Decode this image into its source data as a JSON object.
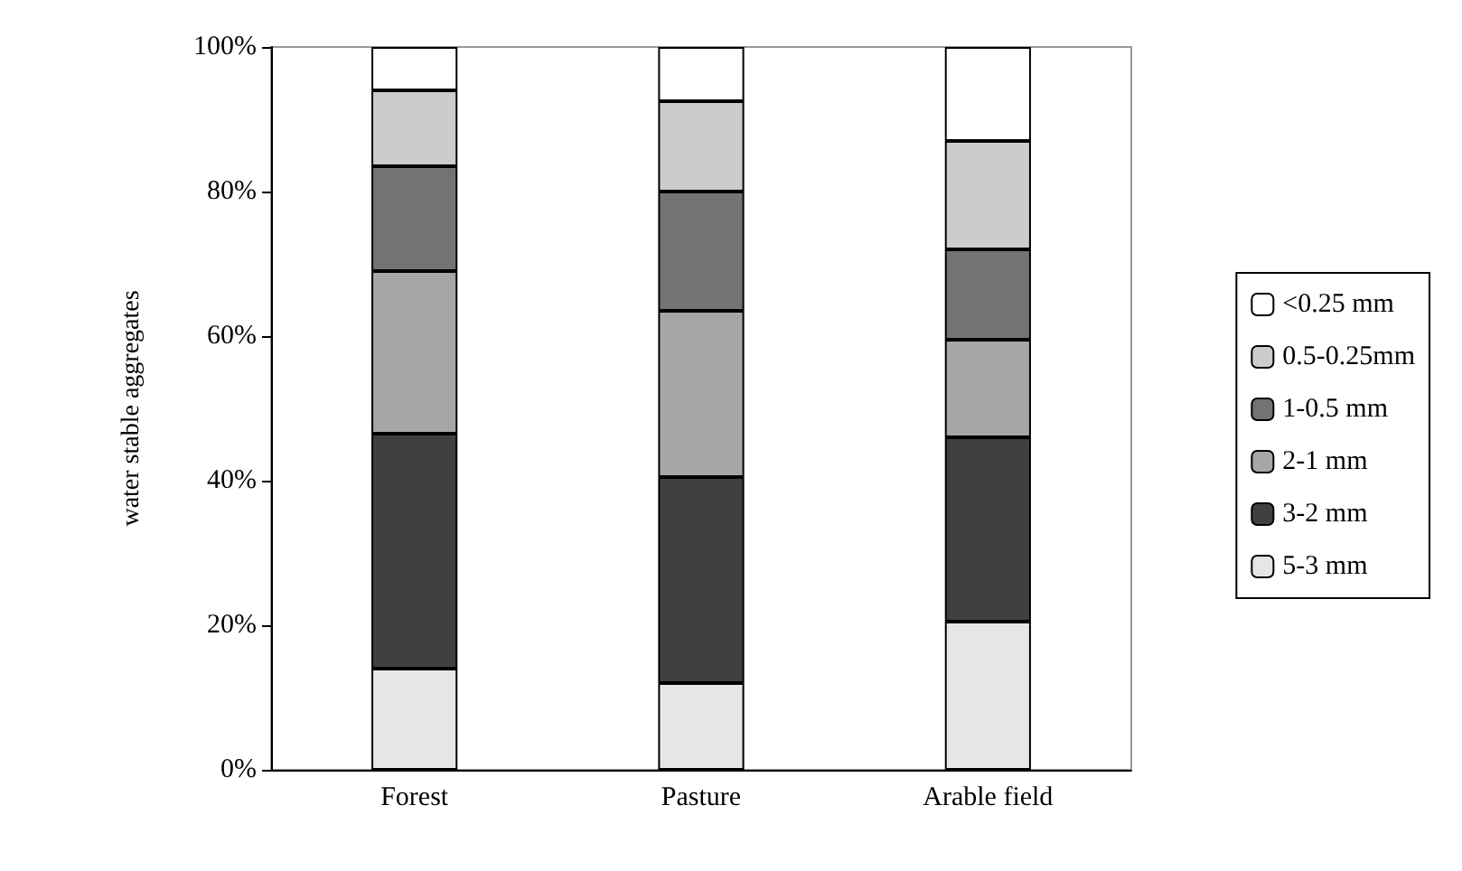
{
  "chart_data": {
    "type": "bar",
    "stacked": true,
    "ylabel": "water stable aggregates",
    "categories": [
      "Forest",
      "Pasture",
      "Arable field"
    ],
    "series": [
      {
        "name": "5-3 mm",
        "color": "#e6e6e6",
        "values": [
          14,
          12,
          20.5
        ]
      },
      {
        "name": "3-2 mm",
        "color": "#404040",
        "values": [
          32.5,
          28.5,
          25.5
        ]
      },
      {
        "name": "2-1 mm",
        "color": "#a6a6a6",
        "values": [
          22.5,
          23,
          13.5
        ]
      },
      {
        "name": "1-0.5 mm",
        "color": "#737373",
        "values": [
          14.5,
          16.5,
          12.5
        ]
      },
      {
        "name": "0.5-0.25mm",
        "color": "#cccccc",
        "values": [
          10.5,
          12.5,
          15
        ]
      },
      {
        "name": "<0.25 mm",
        "color": "#ffffff",
        "values": [
          6,
          7.5,
          13
        ]
      }
    ],
    "ylim": [
      0,
      100
    ],
    "yticks": [
      {
        "value": 0,
        "label": "0%"
      },
      {
        "value": 20,
        "label": "20%"
      },
      {
        "value": 40,
        "label": "40%"
      },
      {
        "value": 60,
        "label": "60%"
      },
      {
        "value": 80,
        "label": "80%"
      },
      {
        "value": 100,
        "label": "100%"
      }
    ],
    "grid": false,
    "legend": "right"
  }
}
